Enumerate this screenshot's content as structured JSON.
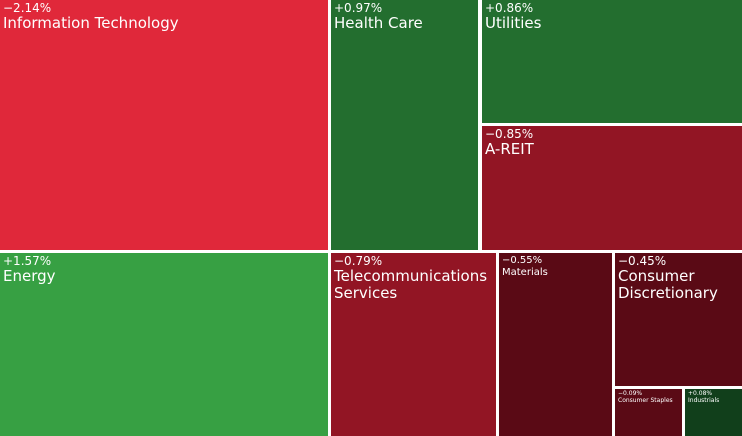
{
  "chart_data": {
    "type": "treemap",
    "categories": [
      "Information Technology",
      "Health Care",
      "Utilities",
      "A-REIT",
      "Energy",
      "Telecommunications Services",
      "Materials",
      "Consumer Discretionary",
      "Consumer Staples",
      "Industrials"
    ],
    "values": [
      -2.14,
      0.97,
      0.86,
      -0.85,
      1.57,
      -0.79,
      -0.55,
      -0.45,
      -0.09,
      0.08
    ],
    "value_labels": [
      "−2.14%",
      "+0.97%",
      "+0.86%",
      "−0.85%",
      "+1.57%",
      "−0.79%",
      "−0.55%",
      "−0.45%",
      "−0.09%",
      "+0.08%"
    ],
    "colors": [
      "#e0283a",
      "#236e2f",
      "#236e2f",
      "#921524",
      "#37a043",
      "#921524",
      "#5a0a15",
      "#5a0a15",
      "#5a0a15",
      "#113f1b"
    ]
  }
}
